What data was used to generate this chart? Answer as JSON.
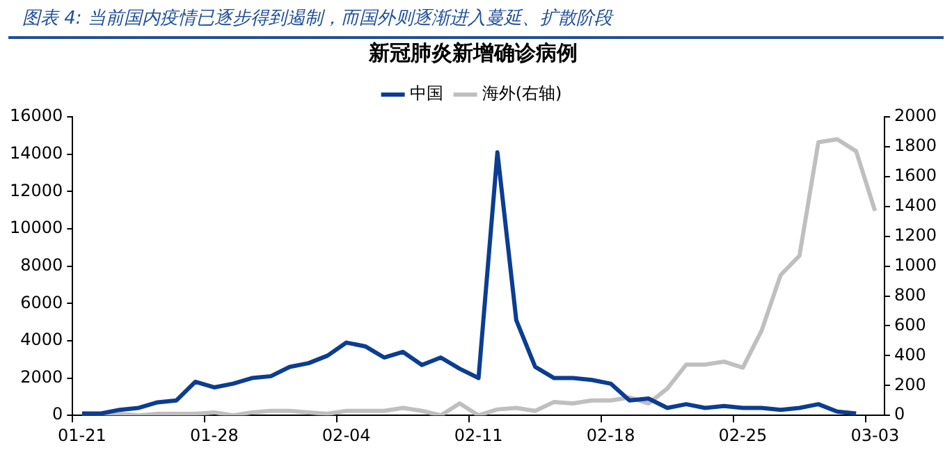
{
  "chart_data": {
    "type": "line",
    "title": "图表 4: 当前国内疫情已逐步得到遏制，而国外则逐渐进入蔓延、扩散阶段",
    "subtitle": "新冠肺炎新增确诊病例",
    "categories": [
      "01-21",
      null,
      null,
      null,
      null,
      null,
      null,
      "01-28",
      null,
      null,
      null,
      null,
      null,
      null,
      "02-04",
      null,
      null,
      null,
      null,
      null,
      null,
      "02-11",
      null,
      null,
      null,
      null,
      null,
      null,
      "02-18",
      null,
      null,
      null,
      null,
      null,
      null,
      "02-25",
      null,
      null,
      null,
      null,
      null,
      null,
      "03-03"
    ],
    "series": [
      {
        "name": "中国",
        "color": "#0b3d91",
        "values": [
          100,
          100,
          300,
          400,
          700,
          800,
          1800,
          1500,
          1700,
          2000,
          2100,
          2600,
          2800,
          3200,
          3900,
          3700,
          3100,
          3400,
          2700,
          3100,
          2500,
          2000,
          14100,
          5100,
          2600,
          2000,
          2000,
          1900,
          1700,
          800,
          900,
          400,
          600,
          400,
          500,
          400,
          400,
          300,
          400,
          600,
          200,
          100,
          null
        ]
      },
      {
        "name": "海外(右轴)",
        "color": "#bfbfbf",
        "axis": "y2",
        "values": [
          0,
          0,
          10,
          0,
          10,
          10,
          10,
          20,
          0,
          20,
          30,
          30,
          20,
          10,
          30,
          30,
          30,
          50,
          30,
          0,
          80,
          0,
          40,
          50,
          30,
          90,
          80,
          100,
          100,
          120,
          80,
          180,
          340,
          340,
          360,
          320,
          570,
          940,
          1070,
          1830,
          1850,
          1770,
          1370
        ]
      }
    ],
    "ylim": [
      0,
      16000
    ],
    "yticks": [
      0,
      2000,
      4000,
      6000,
      8000,
      10000,
      12000,
      14000,
      16000
    ],
    "y2lim": [
      0,
      2000
    ],
    "y2ticks": [
      0,
      200,
      400,
      600,
      800,
      1000,
      1200,
      1400,
      1600,
      1800,
      2000
    ],
    "legend": "top"
  }
}
